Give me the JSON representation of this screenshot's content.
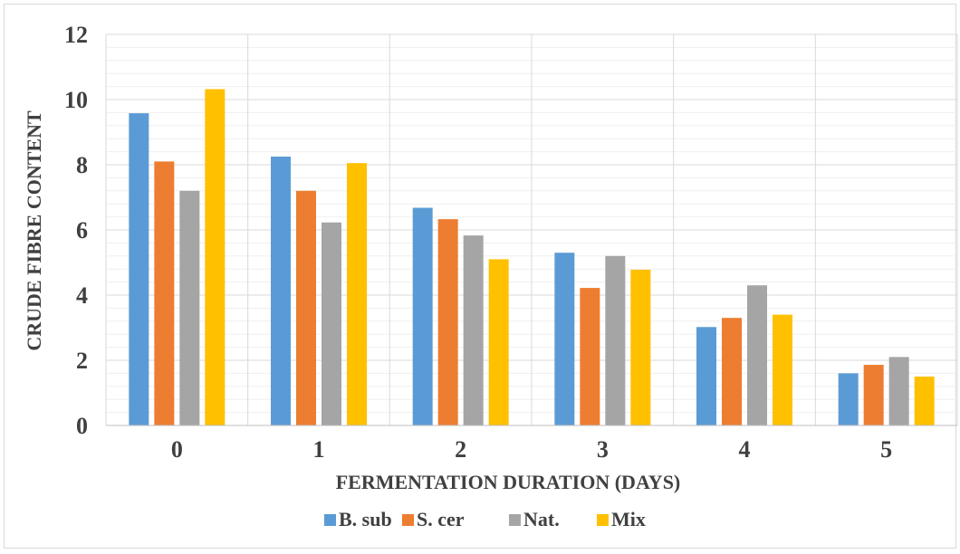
{
  "chart_data": {
    "type": "bar",
    "xlabel": "FERMENTATION DURATION (DAYS)",
    "ylabel": "CRUDE  FIBRE CONTENT",
    "categories": [
      "0",
      "1",
      "2",
      "3",
      "4",
      "5"
    ],
    "ylim": [
      0,
      12
    ],
    "yticks": [
      "0",
      "2",
      "4",
      "6",
      "8",
      "10",
      "12"
    ],
    "grid": "major and minor horizontal, vertical category separators",
    "legend_position": "bottom",
    "series": [
      {
        "name": "B. sub",
        "color": "#5b9bd5",
        "values": [
          9.58,
          8.25,
          6.68,
          5.3,
          3.02,
          1.6
        ]
      },
      {
        "name": "S. cer",
        "color": "#ed7d31",
        "values": [
          8.1,
          7.2,
          6.33,
          4.22,
          3.3,
          1.86
        ]
      },
      {
        "name": "Nat.",
        "color": "#a5a5a5",
        "values": [
          7.2,
          6.23,
          5.83,
          5.2,
          4.3,
          2.1
        ]
      },
      {
        "name": "Mix",
        "color": "#ffc000",
        "values": [
          10.32,
          8.05,
          5.1,
          4.78,
          3.4,
          1.5
        ]
      }
    ]
  }
}
